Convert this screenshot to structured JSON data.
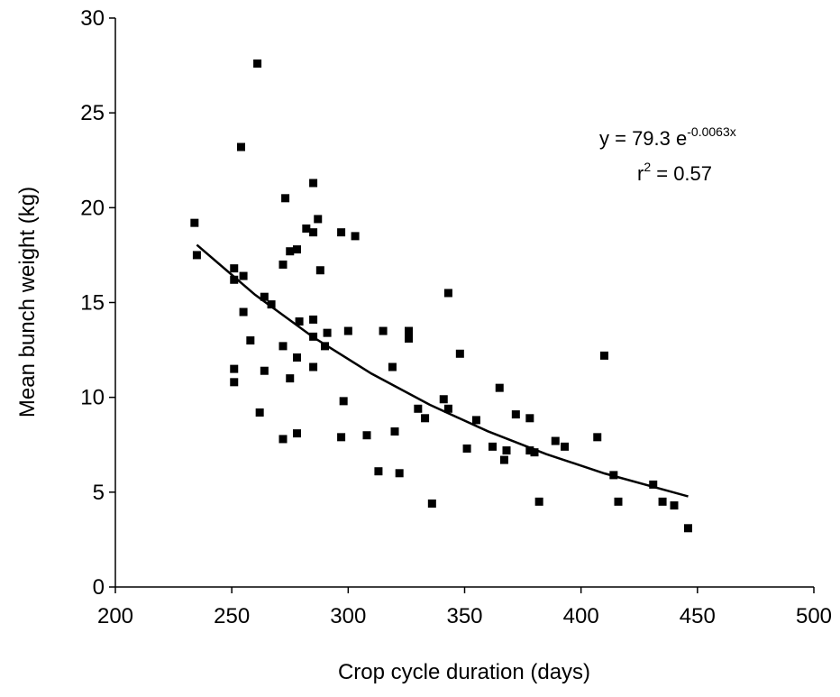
{
  "chart_data": {
    "type": "scatter",
    "xlabel": "Crop cycle duration (days)",
    "ylabel": "Mean bunch weight (kg)",
    "xlim": [
      200,
      500
    ],
    "xticks": [
      200,
      250,
      300,
      350,
      400,
      450,
      500
    ],
    "ylim": [
      0,
      30
    ],
    "yticks": [
      0,
      5,
      10,
      15,
      20,
      25,
      30
    ],
    "color": "#000000",
    "x": [
      234,
      235,
      261,
      254,
      251,
      251,
      255,
      255,
      258,
      251,
      251,
      262,
      264,
      264,
      267,
      272,
      273,
      272,
      272,
      275,
      275,
      278,
      278,
      278,
      279,
      282,
      285,
      285,
      285,
      285,
      285,
      287,
      288,
      290,
      291,
      297,
      298,
      297,
      300,
      303,
      308,
      313,
      315,
      319,
      320,
      322,
      326,
      326,
      330,
      333,
      336,
      341,
      343,
      343,
      348,
      351,
      355,
      362,
      365,
      367,
      368,
      372,
      378,
      378,
      380,
      382,
      389,
      393,
      407,
      410,
      414,
      416,
      431,
      435,
      440,
      446
    ],
    "values": [
      19.2,
      17.5,
      27.6,
      23.2,
      16.8,
      16.2,
      16.4,
      14.5,
      13.0,
      11.5,
      10.8,
      9.2,
      15.3,
      11.4,
      14.9,
      17.0,
      20.5,
      12.7,
      7.8,
      17.7,
      11.0,
      17.8,
      12.1,
      8.1,
      14.0,
      18.9,
      21.3,
      18.7,
      14.1,
      13.2,
      11.6,
      19.4,
      16.7,
      12.7,
      13.4,
      18.7,
      9.8,
      7.9,
      13.5,
      18.5,
      8.0,
      6.1,
      13.5,
      11.6,
      8.2,
      6.0,
      13.5,
      13.1,
      9.4,
      8.9,
      4.4,
      9.9,
      15.5,
      9.4,
      12.3,
      7.3,
      8.8,
      7.4,
      10.5,
      6.7,
      7.2,
      9.1,
      8.9,
      7.2,
      7.1,
      4.5,
      7.7,
      7.4,
      7.9,
      12.2,
      5.9,
      4.5,
      5.4,
      4.5,
      4.3,
      3.1
    ],
    "trendline": {
      "x": [
        235,
        260,
        285,
        310,
        335,
        360,
        385,
        410,
        446
      ],
      "values": [
        18.04,
        15.41,
        13.17,
        11.25,
        9.61,
        8.21,
        7.01,
        5.99,
        4.78
      ]
    },
    "annotations": {
      "equation": {
        "base": "y = 79.3 e",
        "exponent": "-0.0063x"
      },
      "r2": {
        "base": "r",
        "exponent": "2",
        "rest": " = 0.57"
      }
    }
  }
}
